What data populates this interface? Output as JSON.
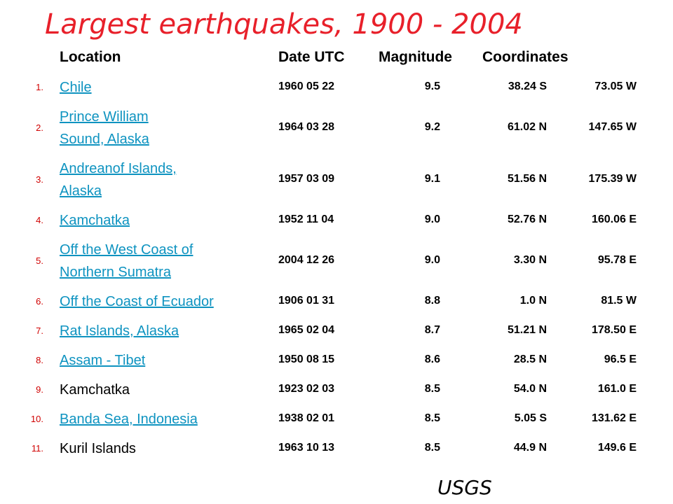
{
  "title": "Largest earthquakes, 1900 - 2004",
  "table": {
    "header": [
      "Location",
      "Date UTC",
      "Magnitude",
      "Coordinates"
    ],
    "rows": [
      {
        "number": "1.",
        "location": [
          "Chile"
        ],
        "link": true,
        "date": "1960 05 22",
        "magnitude": "9.5",
        "lat": "38.24 S",
        "lon": "73.05 W"
      },
      {
        "number": "2.",
        "location": [
          "Prince William",
          "Sound, Alaska"
        ],
        "link": true,
        "date": "1964 03 28",
        "magnitude": "9.2",
        "lat": "61.02 N",
        "lon": "147.65 W"
      },
      {
        "number": "3.",
        "location": [
          "Andreanof Islands,",
          "Alaska"
        ],
        "link": true,
        "date": "1957 03 09",
        "magnitude": "9.1",
        "lat": "51.56 N",
        "lon": "175.39 W"
      },
      {
        "number": "4.",
        "location": [
          "Kamchatka"
        ],
        "link": true,
        "date": "1952 11 04",
        "magnitude": "9.0",
        "lat": "52.76 N",
        "lon": "160.06 E"
      },
      {
        "number": "5.",
        "location": [
          "Off the West Coast of",
          "Northern Sumatra"
        ],
        "link": true,
        "date": "2004 12 26",
        "magnitude": "9.0",
        "lat": "3.30 N",
        "lon": "95.78 E"
      },
      {
        "number": "6.",
        "location": [
          "Off the Coast of Ecuador"
        ],
        "link": true,
        "date": "1906 01 31",
        "magnitude": "8.8",
        "lat": "1.0 N",
        "lon": "81.5 W"
      },
      {
        "number": "7.",
        "location": [
          "Rat Islands, Alaska"
        ],
        "link": true,
        "date": "1965 02 04",
        "magnitude": "8.7",
        "lat": "51.21 N",
        "lon": "178.50 E"
      },
      {
        "number": "8.",
        "location": [
          "Assam - Tibet"
        ],
        "link": true,
        "date": "1950 08 15",
        "magnitude": "8.6",
        "lat": "28.5 N",
        "lon": "96.5 E"
      },
      {
        "number": "9.",
        "location": [
          "Kamchatka"
        ],
        "link": false,
        "date": "1923 02 03",
        "magnitude": "8.5",
        "lat": "54.0 N",
        "lon": "161.0 E"
      },
      {
        "number": "10.",
        "location": [
          "Banda Sea, Indonesia"
        ],
        "link": true,
        "date": "1938 02 01",
        "magnitude": "8.5",
        "lat": "5.05 S",
        "lon": "131.62 E"
      },
      {
        "number": "11.",
        "location": [
          "Kuril Islands"
        ],
        "link": false,
        "date": "1963 10 13",
        "magnitude": "8.5",
        "lat": "44.9 N",
        "lon": "149.6 E"
      }
    ]
  },
  "footer": "USGS"
}
